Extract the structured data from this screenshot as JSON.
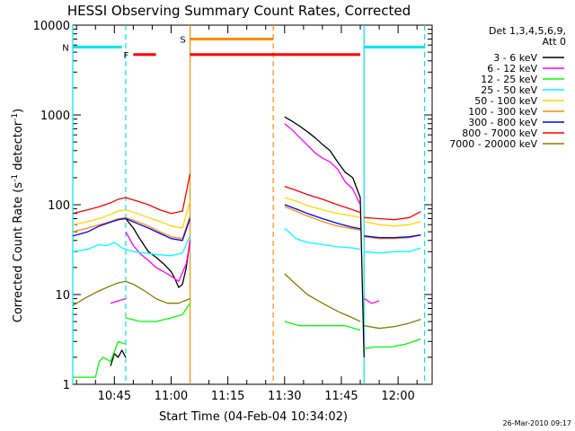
{
  "chart_data": {
    "type": "line",
    "title": "HESSI Observing Summary Count Rates, Corrected",
    "xlabel": "Start Time (04-Feb-04 10:34:02)",
    "ylabel_main": "Corrected Count Rate (s",
    "ylabel_sup1": "-1",
    "ylabel_mid": " detector",
    "ylabel_sup2": "-1",
    "ylabel_end": ")",
    "x_unit": "minutes of day (HH:MM)",
    "xlim": [
      "10:34",
      "12:09"
    ],
    "ylim": [
      1,
      10000
    ],
    "yscale": "log",
    "x_ticks": [
      {
        "t": "10:45",
        "label": "10:45"
      },
      {
        "t": "11:00",
        "label": "11:00"
      },
      {
        "t": "11:15",
        "label": "11:15"
      },
      {
        "t": "11:30",
        "label": "11:30"
      },
      {
        "t": "11:45",
        "label": "11:45"
      },
      {
        "t": "12:00",
        "label": "12:00"
      }
    ],
    "y_ticks": [
      {
        "v": 1,
        "label": "1"
      },
      {
        "v": 10,
        "label": "10"
      },
      {
        "v": 100,
        "label": "100"
      },
      {
        "v": 1000,
        "label": "1000"
      },
      {
        "v": 10000,
        "label": "10000"
      }
    ],
    "legend_header": [
      "Det 1,3,4,5,6,9,",
      "Att 0"
    ],
    "legend_placement": "outside-right",
    "flags": [
      {
        "letter": "N",
        "color": "#00e5ee",
        "segments": [
          [
            "10:34",
            "10:47"
          ],
          [
            "11:51",
            "12:07"
          ]
        ],
        "level": 5700
      },
      {
        "letter": "F",
        "color": "#ff0000",
        "segments": [
          [
            "10:50",
            "10:56"
          ],
          [
            "11:05",
            "11:50"
          ]
        ],
        "level": 4700
      },
      {
        "letter": "S",
        "color": "#ff8c00",
        "segments": [
          [
            "11:05",
            "11:27"
          ]
        ],
        "level": 7000
      }
    ],
    "vlines": [
      {
        "t": "10:34",
        "color": "#00e5ee",
        "dashed": false
      },
      {
        "t": "10:48",
        "color": "#00e5ee",
        "dashed": true
      },
      {
        "t": "11:05",
        "color": "#ff8c00",
        "dashed": false
      },
      {
        "t": "11:27",
        "color": "#ff8c00",
        "dashed": true
      },
      {
        "t": "11:51",
        "color": "#00e5ee",
        "dashed": false
      },
      {
        "t": "12:07",
        "color": "#00e5ee",
        "dashed": true
      }
    ],
    "series": [
      {
        "name": "3 - 6 keV",
        "color": "#000000",
        "segments": [
          [
            [
              "10:44",
              1.6
            ],
            [
              "10:45",
              2.2
            ],
            [
              "10:46",
              2.0
            ],
            [
              "10:47",
              2.4
            ],
            [
              "10:48",
              2.0
            ]
          ],
          [
            [
              "10:48",
              70
            ],
            [
              "10:50",
              55
            ],
            [
              "10:52",
              40
            ],
            [
              "10:54",
              30
            ],
            [
              "10:56",
              26
            ],
            [
              "10:58",
              22
            ],
            [
              "11:00",
              18
            ],
            [
              "11:01",
              15
            ],
            [
              "11:02",
              12
            ],
            [
              "11:03",
              13
            ],
            [
              "11:04",
              20
            ],
            [
              "11:05",
              40
            ]
          ],
          [
            [
              "11:30",
              950
            ],
            [
              "11:32",
              850
            ],
            [
              "11:34",
              750
            ],
            [
              "11:36",
              650
            ],
            [
              "11:38",
              560
            ],
            [
              "11:40",
              470
            ],
            [
              "11:42",
              400
            ],
            [
              "11:44",
              300
            ],
            [
              "11:46",
              230
            ],
            [
              "11:48",
              200
            ],
            [
              "11:50",
              120
            ],
            [
              "11:51",
              2
            ]
          ]
        ]
      },
      {
        "name": "6 - 12 keV",
        "color": "#ff00ff",
        "segments": [
          [
            [
              "10:44",
              8
            ],
            [
              "10:46",
              8.5
            ],
            [
              "10:48",
              9
            ]
          ],
          [
            [
              "10:48",
              50
            ],
            [
              "10:50",
              35
            ],
            [
              "10:52",
              28
            ],
            [
              "10:54",
              24
            ],
            [
              "10:56",
              20
            ],
            [
              "10:58",
              18
            ],
            [
              "11:00",
              16
            ],
            [
              "11:02",
              14
            ],
            [
              "11:04",
              22
            ],
            [
              "11:05",
              40
            ]
          ],
          [
            [
              "11:30",
              800
            ],
            [
              "11:32",
              680
            ],
            [
              "11:34",
              560
            ],
            [
              "11:36",
              460
            ],
            [
              "11:38",
              380
            ],
            [
              "11:40",
              330
            ],
            [
              "11:42",
              300
            ],
            [
              "11:44",
              250
            ],
            [
              "11:46",
              180
            ],
            [
              "11:48",
              150
            ],
            [
              "11:50",
              100
            ]
          ],
          [
            [
              "11:51",
              9
            ],
            [
              "11:53",
              8
            ],
            [
              "11:55",
              8.5
            ]
          ]
        ]
      },
      {
        "name": "12 - 25 keV",
        "color": "#00ff00",
        "segments": [
          [
            [
              "10:34",
              1.2
            ],
            [
              "10:40",
              1.2
            ],
            [
              "10:41",
              1.8
            ],
            [
              "10:42",
              2.0
            ],
            [
              "10:44",
              1.8
            ],
            [
              "10:46",
              3.0
            ],
            [
              "10:48",
              2.8
            ]
          ],
          [
            [
              "10:48",
              5.5
            ],
            [
              "10:52",
              5
            ],
            [
              "10:56",
              5
            ],
            [
              "11:00",
              5.5
            ],
            [
              "11:03",
              6
            ],
            [
              "11:05",
              8
            ]
          ],
          [
            [
              "11:30",
              5
            ],
            [
              "11:34",
              4.5
            ],
            [
              "11:38",
              4.5
            ],
            [
              "11:42",
              4.5
            ],
            [
              "11:46",
              4.5
            ],
            [
              "11:50",
              4
            ]
          ],
          [
            [
              "11:51",
              2.5
            ],
            [
              "11:54",
              2.6
            ],
            [
              "11:58",
              2.6
            ],
            [
              "12:02",
              2.8
            ],
            [
              "12:06",
              3.2
            ]
          ]
        ]
      },
      {
        "name": "25 - 50 keV",
        "color": "#00ffff",
        "segments": [
          [
            [
              "10:34",
              30
            ],
            [
              "10:38",
              32
            ],
            [
              "10:41",
              36
            ],
            [
              "10:43",
              35
            ],
            [
              "10:45",
              38
            ],
            [
              "10:47",
              33
            ],
            [
              "10:50",
              30
            ],
            [
              "10:53",
              29
            ],
            [
              "10:56",
              28
            ],
            [
              "11:00",
              27
            ],
            [
              "11:03",
              29
            ],
            [
              "11:05",
              45
            ]
          ],
          [
            [
              "11:30",
              55
            ],
            [
              "11:33",
              42
            ],
            [
              "11:36",
              38
            ],
            [
              "11:40",
              36
            ],
            [
              "11:44",
              34
            ],
            [
              "11:48",
              33
            ],
            [
              "11:50",
              32
            ]
          ],
          [
            [
              "11:51",
              30
            ],
            [
              "11:55",
              29
            ],
            [
              "11:59",
              30
            ],
            [
              "12:03",
              30
            ],
            [
              "12:06",
              33
            ]
          ]
        ]
      },
      {
        "name": "50 - 100 keV",
        "color": "#ffd700",
        "segments": [
          [
            [
              "10:34",
              60
            ],
            [
              "10:38",
              65
            ],
            [
              "10:41",
              70
            ],
            [
              "10:44",
              78
            ],
            [
              "10:46",
              85
            ],
            [
              "10:48",
              88
            ],
            [
              "10:51",
              80
            ],
            [
              "10:54",
              72
            ],
            [
              "10:57",
              65
            ],
            [
              "11:00",
              58
            ],
            [
              "11:03",
              55
            ],
            [
              "11:05",
              110
            ]
          ],
          [
            [
              "11:30",
              120
            ],
            [
              "11:33",
              110
            ],
            [
              "11:36",
              98
            ],
            [
              "11:40",
              88
            ],
            [
              "11:44",
              80
            ],
            [
              "11:48",
              75
            ],
            [
              "11:50",
              72
            ]
          ],
          [
            [
              "11:51",
              65
            ],
            [
              "11:55",
              60
            ],
            [
              "11:59",
              58
            ],
            [
              "12:03",
              60
            ],
            [
              "12:06",
              65
            ]
          ]
        ]
      },
      {
        "name": "100 - 300 keV",
        "color": "#ff8c00",
        "segments": [
          [
            [
              "10:34",
              50
            ],
            [
              "10:38",
              55
            ],
            [
              "10:41",
              60
            ],
            [
              "10:44",
              65
            ],
            [
              "10:46",
              70
            ],
            [
              "10:48",
              72
            ],
            [
              "10:51",
              65
            ],
            [
              "10:54",
              58
            ],
            [
              "10:57",
              50
            ],
            [
              "11:00",
              44
            ],
            [
              "11:03",
              42
            ],
            [
              "11:05",
              75
            ]
          ],
          [
            [
              "11:30",
              95
            ],
            [
              "11:33",
              85
            ],
            [
              "11:36",
              75
            ],
            [
              "11:40",
              65
            ],
            [
              "11:44",
              58
            ],
            [
              "11:48",
              54
            ],
            [
              "11:50",
              52
            ]
          ],
          [
            [
              "11:51",
              44
            ],
            [
              "11:55",
              42
            ],
            [
              "11:59",
              42
            ],
            [
              "12:03",
              43
            ],
            [
              "12:06",
              46
            ]
          ]
        ]
      },
      {
        "name": "300 - 800 keV",
        "color": "#0000ff",
        "segments": [
          [
            [
              "10:34",
              45
            ],
            [
              "10:38",
              50
            ],
            [
              "10:41",
              58
            ],
            [
              "10:44",
              64
            ],
            [
              "10:46",
              68
            ],
            [
              "10:48",
              70
            ],
            [
              "10:51",
              62
            ],
            [
              "10:54",
              55
            ],
            [
              "10:57",
              48
            ],
            [
              "11:00",
              42
            ],
            [
              "11:03",
              40
            ],
            [
              "11:05",
              70
            ]
          ],
          [
            [
              "11:30",
              100
            ],
            [
              "11:33",
              90
            ],
            [
              "11:36",
              80
            ],
            [
              "11:40",
              70
            ],
            [
              "11:44",
              62
            ],
            [
              "11:48",
              56
            ],
            [
              "11:50",
              54
            ]
          ],
          [
            [
              "11:51",
              45
            ],
            [
              "11:55",
              43
            ],
            [
              "11:59",
              43
            ],
            [
              "12:03",
              44
            ],
            [
              "12:06",
              46
            ]
          ]
        ]
      },
      {
        "name": "800 - 7000 keV",
        "color": "#ff0000",
        "segments": [
          [
            [
              "10:34",
              80
            ],
            [
              "10:38",
              88
            ],
            [
              "10:41",
              95
            ],
            [
              "10:44",
              105
            ],
            [
              "10:46",
              115
            ],
            [
              "10:48",
              120
            ],
            [
              "10:51",
              110
            ],
            [
              "10:54",
              100
            ],
            [
              "10:57",
              88
            ],
            [
              "11:00",
              80
            ],
            [
              "11:03",
              85
            ],
            [
              "11:05",
              220
            ]
          ],
          [
            [
              "11:30",
              160
            ],
            [
              "11:33",
              145
            ],
            [
              "11:36",
              130
            ],
            [
              "11:40",
              115
            ],
            [
              "11:44",
              100
            ],
            [
              "11:48",
              88
            ],
            [
              "11:50",
              82
            ]
          ],
          [
            [
              "11:51",
              72
            ],
            [
              "11:55",
              70
            ],
            [
              "11:59",
              68
            ],
            [
              "12:03",
              72
            ],
            [
              "12:06",
              84
            ]
          ]
        ]
      },
      {
        "name": "7000 - 20000 keV",
        "color": "#808000",
        "segments": [
          [
            [
              "10:34",
              7.5
            ],
            [
              "10:37",
              9
            ],
            [
              "10:40",
              10.5
            ],
            [
              "10:43",
              12
            ],
            [
              "10:46",
              13.5
            ],
            [
              "10:48",
              14
            ],
            [
              "10:50",
              13
            ],
            [
              "10:53",
              11
            ],
            [
              "10:56",
              9
            ],
            [
              "10:59",
              8
            ],
            [
              "11:02",
              8
            ],
            [
              "11:05",
              9
            ]
          ],
          [
            [
              "11:30",
              17
            ],
            [
              "11:33",
              13
            ],
            [
              "11:36",
              10
            ],
            [
              "11:40",
              8
            ],
            [
              "11:44",
              6.5
            ],
            [
              "11:48",
              5.5
            ],
            [
              "11:50",
              5
            ]
          ],
          [
            [
              "11:51",
              4.5
            ],
            [
              "11:55",
              4.2
            ],
            [
              "11:59",
              4.4
            ],
            [
              "12:03",
              4.8
            ],
            [
              "12:06",
              5.3
            ]
          ]
        ]
      }
    ],
    "footer_date": "26-Mar-2010 09:17"
  }
}
